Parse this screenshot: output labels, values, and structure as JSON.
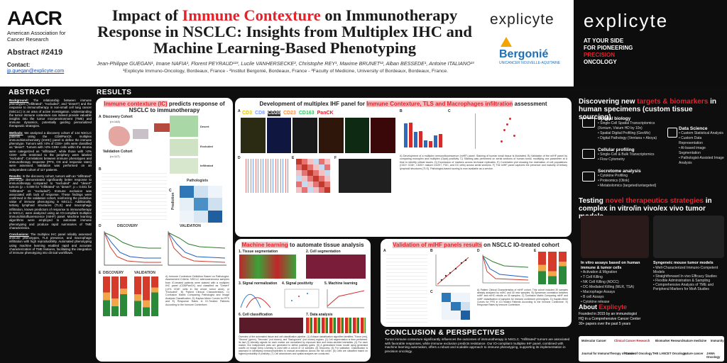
{
  "header": {
    "aacr_mark": "AACR",
    "aacr_sub": "American Association for Cancer Research",
    "abstract_number": "Abstract #2419",
    "contact_label": "Contact:",
    "contact_email": "jp.guegan@explicyte.com",
    "title_part1": "Impact of ",
    "title_highlight": "Immune Contexture",
    "title_part2": " on Immunotherapy Response in NSCLC: Insights from Multiplex IHC and Machine Learning-Based Phenotyping",
    "authors": "Jean-Philippe GUEGAN¹, Imane NAFIA¹, Florent PEYRAUD¹²³, Lucile VANHERSECKE², Christophe REY¹, Maxime BRUNET¹², Alban BESSEDE¹, Antoine ITALIANO²³",
    "affiliations": "¹Explicyte Immuno-Oncology, Bordeaux, France - ²Institut Bergonié, Bordeaux, France - ³Faculty of Medicine, University of Bordeaux, Bordeaux, France.",
    "explicyte_logo": "explicyte",
    "bergonie_logo": "Bergonié",
    "bergonie_sub": "UNICANCER NOUVELLE-AQUITAINE"
  },
  "banner": {
    "logo": "explicyte",
    "line1": "AT YOUR SIDE",
    "line2": "FOR PIONEERING",
    "line3": "PRECISION",
    "line4": "ONCOLOGY"
  },
  "sections": {
    "abstract": "ABSTRACT",
    "results": "RESULTS",
    "conclusion": "CONCLUSION & PERSPECTIVES"
  },
  "abstract": {
    "background_label": "Background:",
    "background": "The relationship between immune phenotypes (\"infiltrated\", \"excluded\", and \"desert\") and the response to immunotherapy in non-small cell lung cancer (NSCLC) is an area of active investigation. Understanding the tumor immune contexture can indeed provide valuable insights into the tumor microenvironment (TME) and immune dynamics, potentially guiding personalized therapeutic strategies.",
    "methods_label": "Methods:",
    "methods": "We analyzed a discovery cohort of 144 NSCLC patients using the CD8/PanCK multiplex immunohistochemistry (mIHC) panel to define the immune phenotype. Tumors with >2% of CD8+ cells were classified as \"desert\". Tumors with >2% CD8+ cells within the stroma were categorized as \"infiltrated\", while those with >2% CD8+ cells restricted to the periphery were labeled \"excluded\". Correlations between immune phenotypes and immunotherapy response (PFS, OS and response rates) were assessed. Validation was performed on an independent cohort of 117 patients.",
    "results_label": "Results:",
    "results": "In the discovery cohort, tumors with an \"infiltrated\" phenotype demonstrated significantly better response to immunotherapy compared to \"excluded\" and \"desert\" tumors (p = 0.009 for \"infiltrated\" vs \"desert\", p = 0.031 for \"infiltrated\" vs \"excluded\"). Immune exclusion was associated with lack of response. These findings were confirmed in the validation cohort, reinforcing the predictive value of immune phenotyping in NSCLC. Additionally, tertiary lymphoid structures (TLS) and macrophage infiltration, known predictors of response to immunotherapy in NSCLC, were analyzed using an IO-compliant multiplex immunohistofluorescence (mIHF) panel. Machine learning algorithms were employed to automate immune phenotyping and produce rapid summaries of TME characteristics.",
    "conclusions_label": "Conclusions:",
    "conclusions": "The multiplex IHC panel reliably assessed immune phenotypes, TLS presence, and macrophage infiltration with high reproducibility. Automated phenotyping using machine learning enabled rapid and accurate characterization of TME features, facilitating the integration of immune phenotyping into clinical workflows."
  },
  "panel_ic": {
    "title_hl": "Immune contexture (IC)",
    "title_rest": " predicts response of NSCLC to immunotherapy",
    "discovery": "Discovery Cohort",
    "discovery_n": "(n=144)",
    "validation": "Validation Cohort",
    "validation_n": "(n=117)",
    "desert": "Desert",
    "excluded": "Excluded",
    "infiltrated": "Infiltrated",
    "pathologists": "Pathologists",
    "prediction": "Prediction",
    "disc_label": "DISCOVERY",
    "val_label": "VALIDATION",
    "caption": "A) Immune Contexture Definition Based on Pathologist-Assessment Criteria. NSCLC adenocarcinoma samples from IO-treated patients were stained with a multiplex IHC panel (CD8/PanCK) and classified as \"Desert\" (>2% CD8+ cells in the whole tumor area), or \"Excluded\", B) Patient Clinical Characteristics, C) Confusion Matrix Comparing Pathologist and Image Analysis Classification, D) Kaplan-Meier Curves for PFS and E) Response Rates in IO-Treated Patients According to the Immune Contexture."
  },
  "panel_mihf": {
    "title_pre": "Development of multiplex IHF panel for ",
    "title_hl": "Immune Contexture, TLS and Macrophages infiltration",
    "title_post": " assessment",
    "markers": [
      "CD3",
      "CD8",
      "CD20",
      "CD23",
      "CD163",
      "PanCK"
    ],
    "caption": "A) Development of a multiplex immunofluorescence (mIHF) panel. Staining of human tonsil tissue is illustrated. B) Validation of the mIHF panel by comparing monoplex and multiplex (Opal) positivity. C) Staining was performed on serial sections of human tonsil, modifying one parameter at a time to identify critical issues. D) Expression of markers across technical replicates. E) Correlation plot showing the estimation of cell populations (CD3+ CD8+, CD20+ mature CD20+, FDC, and DC cells) across serial sections. F) The mIHF panel captures the presence and maturity of tertiary lymphoid structures (TLS). Pathologist-based scoring is now available as a service."
  },
  "panel_ml": {
    "title_hl": "Machine learning",
    "title_rest": " to automate tissue analysis",
    "steps": [
      "1. Tissue segmentation",
      "2. Cell segmentation",
      "3. Signal normalization",
      "4. Signal positivity",
      "5. Machine learning",
      "6. Cell classification",
      "7. Data analysis"
    ],
    "caption": "Overview of the automated tissue and cell classification pipeline. (1) A tissue classification algorithm identifies \"Tumor (red), \"Stroma\" (green), \"Necrosis\" (not shown), and \"Background\" (not shown) regions. (2) Cell segmentation is then performed. Its fact (3) intensity signals for each marker are normalized by exposure time and mean-decided intensities. (4) For each marker, five independent plots are generated to define positivity gates. (5) A generalized linear model using generated cutoffs on Image Deep Learning is used with a cohort of 14 samples. (6) Discovery. (6) For validation, Classification is assessed in identifying immunoreactivities to manual annotations across the full cohort. (6) Cells are classified based on highest probability of positivity. (7) Cell abundances and spatial analyses are conducted."
  },
  "panel_valid": {
    "title_hl": "Validation of mIHF panels results",
    "title_rest": " on NSCLC IO-treated cohort",
    "caption": "A) Patient Clinical Characteristics of mIHF cohort. This cohort included 30 samples already analyzed by mIHC and 30 new samples. B) Spearman correlation between mIHF and mIHC results on 30 samples. C) Confusion Matrix Comparing mIHF and mIHF classification of samples for Immune contexture phenotypes. D) Kaplan-Meier Curves for PFS in IO-Treated Patients According to the Immune Contexture. E) Response Rates by Immune Contexture."
  },
  "conclusion_text": "Tumor immune contexture significantly influences the outcomes of immunotherapy in NSCLC. \"Infiltrated\" tumors are associated with favorable responses, while immune exclusion predicts resistance. Our IO-compliant multiplex IHF panel, combined with machine learning automation, offers a robust and scalable approach to immune phenotyping, supporting its implementation in precision oncology.",
  "right_col": {
    "title1_pre": "Discovering new ",
    "title1_hl": "targets & biomarkers",
    "title1_post": " in human specimens (custom tissue sourcing)",
    "groups": [
      {
        "h": "Spatial biology",
        "items": [
          "Single-Cell Spatial Transcriptomics (Xenium, Visium HD by 10x)",
          "Spatial Digital Profiling (GeoMx)",
          "Digital Pathology (Ventana + Akoya)"
        ]
      },
      {
        "h": "Cellular profiling",
        "items": [
          "Single-Cell & Bulk Transcriptomics",
          "Flow Cytometry"
        ]
      },
      {
        "h": "Secretome analysis",
        "items": [
          "Cytokine Profiling",
          "Proteomics (Olink)",
          "Metabolomics (targeted/untargeted)"
        ]
      },
      {
        "h": "Data Science",
        "items": [
          "Custom Statistical Analysis",
          "Custom Data Representation",
          "AI-based image Segmentation",
          "Pathologist-Assisted Image Analysis"
        ]
      }
    ],
    "title2_pre": "Testing ",
    "title2_hl": "novel therapeutics strategies",
    "title2_post": " in complex in vitro/in vivo/ex vivo tumor models",
    "vitro_h": "In vitro assays based on human immune & tumor cells",
    "vitro_items": [
      "Activation & Migration",
      "T Cell Killing",
      "NK Cell Killing (ADCC)",
      "DC-Mediated Killing (MLR, TSA)",
      "Macrophage Assays",
      "B cell Assays",
      "Cytokine release"
    ],
    "syn_h": "Syngeneic mouse tumor models",
    "syn_items": [
      "Well-Characterized Immuno-Competent Models",
      "Straightforward In vivo Efficacy Studies",
      "Flexible Administration & Sampling",
      "Comprehensive Analysis of TME and Peripheral Markers for MoA Studies"
    ],
    "about_title_pre": "About ",
    "about_title_hl": "Explicyte",
    "about_lines": [
      "Founded in 2015 by an immunologist",
      "HQ in a Comprehensive Cancer Center",
      "30+ papers over the past 5 years"
    ],
    "pub_logos": [
      "Molecular Cancer",
      "Clinical Cancer Research",
      "Biomarker Research",
      "nature medicine",
      "Immunity",
      "Journal for ImmunoTherapy of Cancer",
      "Annals of Oncology",
      "THE LANCET Oncology",
      "nature cancer",
      "JAMA Oncology"
    ]
  },
  "colors": {
    "accent": "#e8202a",
    "dark": "#0e0e0e",
    "highlight": "#f2c0c0"
  }
}
